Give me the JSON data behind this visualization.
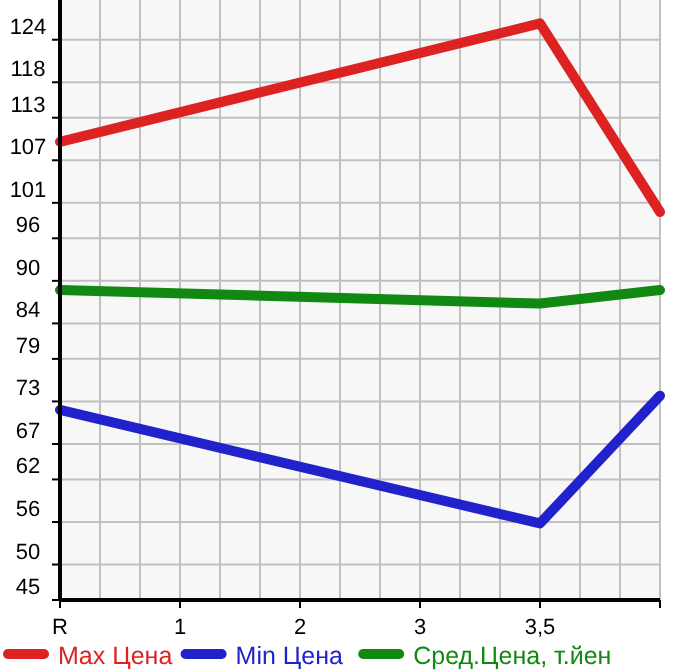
{
  "chart_data": {
    "type": "line",
    "categories": [
      "R",
      "1",
      "2",
      "3",
      "3,5",
      null
    ],
    "series": [
      {
        "name": "Max Цена",
        "color": "#dd2222",
        "values": [
          109.6,
          null,
          null,
          null,
          126.3,
          99.7
        ]
      },
      {
        "name": "Min Цена",
        "color": "#2222cc",
        "values": [
          71.8,
          null,
          null,
          null,
          55.8,
          73.8
        ]
      },
      {
        "name": "Сред.Цена, т.йен",
        "color": "#118811",
        "values": [
          88.7,
          null,
          null,
          null,
          86.8,
          88.7
        ]
      }
    ],
    "ylim": [
      45,
      129.6
    ],
    "yticks": [
      45,
      50,
      56,
      62,
      67,
      73,
      79,
      84,
      90,
      96,
      101,
      107,
      113,
      118,
      124
    ],
    "grid": true,
    "legend": "bottom",
    "marker": "none",
    "line_style": "solid"
  }
}
